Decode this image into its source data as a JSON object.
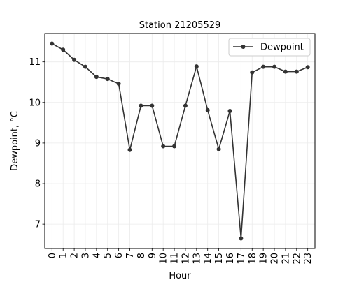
{
  "chart_data": {
    "type": "line",
    "title": "Station 21205529",
    "xlabel": "Hour",
    "ylabel": "Dewpoint, °C",
    "x": [
      0,
      1,
      2,
      3,
      4,
      5,
      6,
      7,
      8,
      9,
      10,
      11,
      12,
      13,
      14,
      15,
      16,
      17,
      18,
      19,
      20,
      21,
      22,
      23
    ],
    "x_tick_labels": [
      "0",
      "1",
      "2",
      "3",
      "4",
      "5",
      "6",
      "7",
      "8",
      "9",
      "10",
      "11",
      "12",
      "13",
      "14",
      "15",
      "16",
      "17",
      "18",
      "19",
      "20",
      "21",
      "22",
      "23"
    ],
    "series": [
      {
        "name": "Dewpoint",
        "color": "#333333",
        "values": [
          11.45,
          11.3,
          11.05,
          10.88,
          10.63,
          10.58,
          10.46,
          8.83,
          9.92,
          9.92,
          8.92,
          8.92,
          9.92,
          10.89,
          9.81,
          8.85,
          9.79,
          6.65,
          10.74,
          10.88,
          10.88,
          10.76,
          10.76,
          10.87
        ]
      }
    ],
    "xlim": [
      -0.65,
      23.65
    ],
    "ylim": [
      6.4,
      11.7
    ],
    "y_ticks": [
      7,
      8,
      9,
      10,
      11
    ],
    "y_tick_labels": [
      "7",
      "8",
      "9",
      "10",
      "11"
    ],
    "grid": true,
    "legend_position": "top-right"
  }
}
